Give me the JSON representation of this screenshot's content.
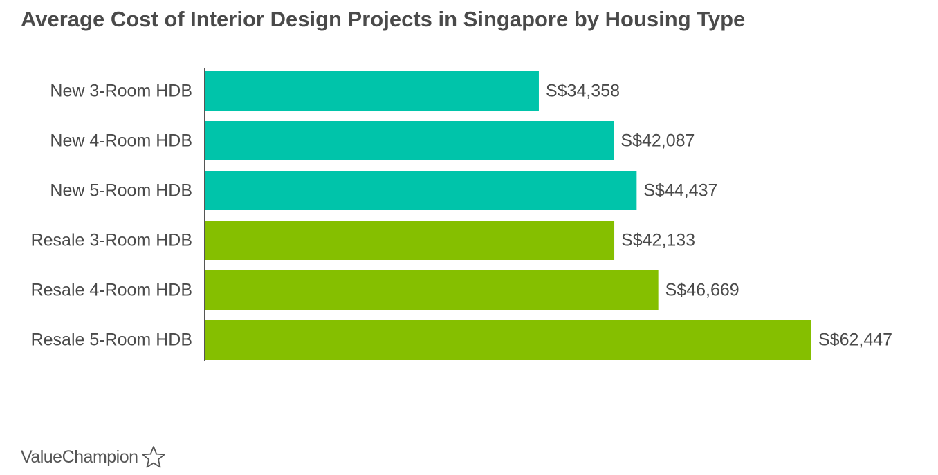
{
  "chart_data": {
    "type": "bar",
    "orientation": "horizontal",
    "title": "Average Cost of Interior Design Projects in Singapore by Housing Type",
    "categories": [
      "New 3-Room HDB",
      "New 4-Room HDB",
      "New 5-Room HDB",
      "Resale 3-Room HDB",
      "Resale 4-Room HDB",
      "Resale 5-Room HDB"
    ],
    "values": [
      34358,
      42087,
      44437,
      42133,
      46669,
      62447
    ],
    "value_labels": [
      "S$34,358",
      "S$42,087",
      "S$44,437",
      "S$42,133",
      "S$46,669",
      "S$62,447"
    ],
    "bar_colors": [
      "#00c4aa",
      "#00c4aa",
      "#00c4aa",
      "#85bf00",
      "#85bf00",
      "#85bf00"
    ],
    "xlim": [
      0,
      62447
    ],
    "xlabel": "",
    "ylabel": "",
    "grid": false
  },
  "brand": {
    "name": "ValueChampion",
    "icon": "star-outline-icon"
  },
  "colors": {
    "title": "#4a4a4a",
    "label": "#4a4a4a",
    "axis": "#555555"
  }
}
